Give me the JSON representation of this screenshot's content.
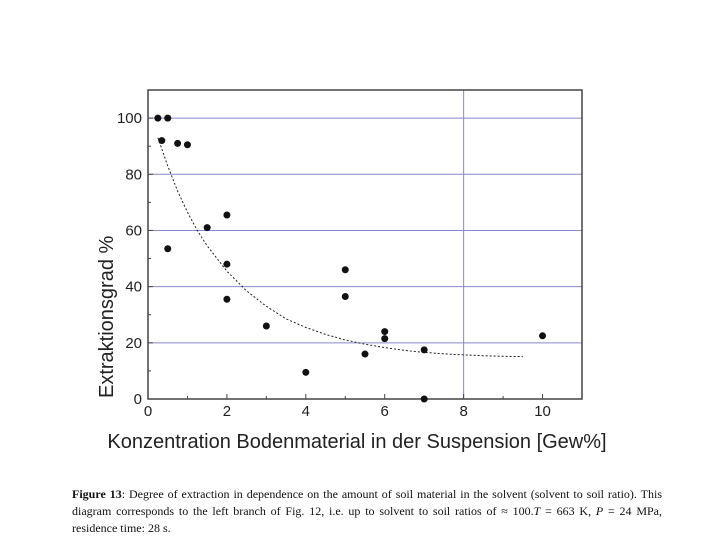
{
  "chart_data": {
    "type": "scatter",
    "xlabel": "Konzentration Bodenmaterial in der Suspension  [Gew%]",
    "ylabel": "Extraktionsgrad %",
    "xlim": [
      0,
      11
    ],
    "ylim": [
      0,
      110
    ],
    "xticks": [
      0,
      2,
      4,
      6,
      8,
      10
    ],
    "yticks": [
      0,
      20,
      40,
      60,
      80,
      100
    ],
    "grid_y": [
      20,
      40,
      60,
      80,
      100
    ],
    "grid_x": [
      8
    ],
    "points": [
      {
        "x": 0.25,
        "y": 100
      },
      {
        "x": 0.5,
        "y": 100
      },
      {
        "x": 0.35,
        "y": 92
      },
      {
        "x": 0.75,
        "y": 91
      },
      {
        "x": 1.0,
        "y": 90.5
      },
      {
        "x": 0.5,
        "y": 53.5
      },
      {
        "x": 1.5,
        "y": 61
      },
      {
        "x": 2.0,
        "y": 65.5
      },
      {
        "x": 2.0,
        "y": 48
      },
      {
        "x": 2.0,
        "y": 35.5
      },
      {
        "x": 3.0,
        "y": 26
      },
      {
        "x": 4.0,
        "y": 9.5
      },
      {
        "x": 5.0,
        "y": 46
      },
      {
        "x": 5.0,
        "y": 36.5
      },
      {
        "x": 5.5,
        "y": 16
      },
      {
        "x": 6.0,
        "y": 24
      },
      {
        "x": 6.0,
        "y": 21.5
      },
      {
        "x": 7.0,
        "y": 17.5
      },
      {
        "x": 7.0,
        "y": 0
      },
      {
        "x": 10.0,
        "y": 22.5
      }
    ],
    "fit_curve": {
      "style": "dashed",
      "x": [
        0.25,
        0.5,
        0.75,
        1,
        1.25,
        1.5,
        2,
        2.5,
        3,
        3.5,
        4,
        4.5,
        5,
        5.5,
        6,
        6.5,
        7,
        7.5,
        8,
        8.5,
        9,
        9.5
      ],
      "y": [
        93,
        83,
        74,
        66.5,
        60,
        54.5,
        45.5,
        38.5,
        33,
        28.5,
        25.5,
        23,
        21,
        19.5,
        18.3,
        17.3,
        16.6,
        16.1,
        15.7,
        15.4,
        15.2,
        15.1
      ]
    }
  },
  "caption": {
    "label": "Figure 13",
    "text": ": Degree of extraction in dependence on the amount of soil material in the solvent (solvent to soil ratio). This diagram corresponds to the left branch of Fig. 12, i.e. up to solvent to soil ratios of ≈ 100.",
    "italic_t": "T",
    "t_value": " = 663 K, ",
    "italic_p": "P",
    "p_value": " = 24 MPa, residence time: 28 s."
  }
}
